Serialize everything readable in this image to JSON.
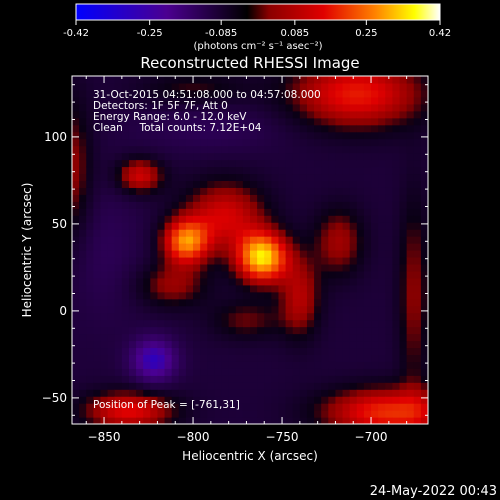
{
  "chart_data": {
    "type": "heatmap",
    "title": "Reconstructed RHESSI Image",
    "xlabel": "Heliocentric X (arcsec)",
    "ylabel": "Heliocentric Y (arcsec)",
    "xlim": [
      -868,
      -668
    ],
    "ylim": [
      -65,
      135
    ],
    "x_ticks": [
      -850,
      -800,
      -750,
      -700
    ],
    "y_ticks": [
      -50,
      0,
      50,
      100
    ],
    "colorbar": {
      "ticks": [
        -0.42,
        -0.25,
        -0.085,
        0.085,
        0.25,
        0.42
      ],
      "tick_labels": [
        "-0.42",
        "-0.25",
        "-0.085",
        "0.085",
        "0.25",
        "0.42"
      ],
      "range": [
        -0.42,
        0.42
      ],
      "unit_label": "(photons cm⁻² s⁻¹ asec⁻²)",
      "colors": [
        "#0000ff",
        "#4b0090",
        "#000000",
        "#c00000",
        "#ff8000",
        "#ffff00",
        "#ffffff"
      ]
    },
    "info_lines": [
      "31-Oct-2015 04:51:08.000 to 04:57:08.000",
      "Detectors: 1F 5F 7F, Att 0",
      "Energy Range: 6.0 - 12.0 keV",
      "Clean     Total counts: 7.12E+04"
    ],
    "peak_label": "Position of Peak = [-761,31]",
    "peak": {
      "x": -761,
      "y": 31,
      "value": 0.42
    },
    "sources": [
      {
        "x": -761,
        "y": 31,
        "sx": 10,
        "sy": 10,
        "amp": 0.42
      },
      {
        "x": -804,
        "y": 40,
        "sx": 9,
        "sy": 9,
        "amp": 0.33
      },
      {
        "x": -782,
        "y": 55,
        "sx": 16,
        "sy": 14,
        "amp": 0.2
      },
      {
        "x": -830,
        "y": 78,
        "sx": 9,
        "sy": 7,
        "amp": 0.2
      },
      {
        "x": -740,
        "y": 8,
        "sx": 8,
        "sy": 16,
        "amp": 0.16
      },
      {
        "x": -718,
        "y": 40,
        "sx": 10,
        "sy": 14,
        "amp": 0.14
      },
      {
        "x": -812,
        "y": 15,
        "sx": 14,
        "sy": 9,
        "amp": 0.13
      },
      {
        "x": -770,
        "y": -5,
        "sx": 14,
        "sy": 8,
        "amp": 0.1
      },
      {
        "x": -836,
        "y": -57,
        "sx": 18,
        "sy": 8,
        "amp": 0.22
      },
      {
        "x": -690,
        "y": -58,
        "sx": 26,
        "sy": 10,
        "amp": 0.26
      },
      {
        "x": -708,
        "y": 125,
        "sx": 26,
        "sy": 14,
        "amp": 0.24
      },
      {
        "x": -868,
        "y": 80,
        "sx": 8,
        "sy": 30,
        "amp": 0.13
      },
      {
        "x": -676,
        "y": 10,
        "sx": 6,
        "sy": 40,
        "amp": 0.12
      },
      {
        "x": -800,
        "y": 128,
        "sx": 22,
        "sy": 7,
        "amp": 0.08
      },
      {
        "x": -822,
        "y": -28,
        "sx": 9,
        "sy": 9,
        "amp": -0.22
      },
      {
        "x": -850,
        "y": 35,
        "sx": 16,
        "sy": 28,
        "amp": -0.05
      },
      {
        "x": -790,
        "y": 105,
        "sx": 30,
        "sy": 10,
        "amp": -0.05
      }
    ],
    "baseline": -0.095
  },
  "footer": {
    "date": "24-May-2022 00:43"
  }
}
